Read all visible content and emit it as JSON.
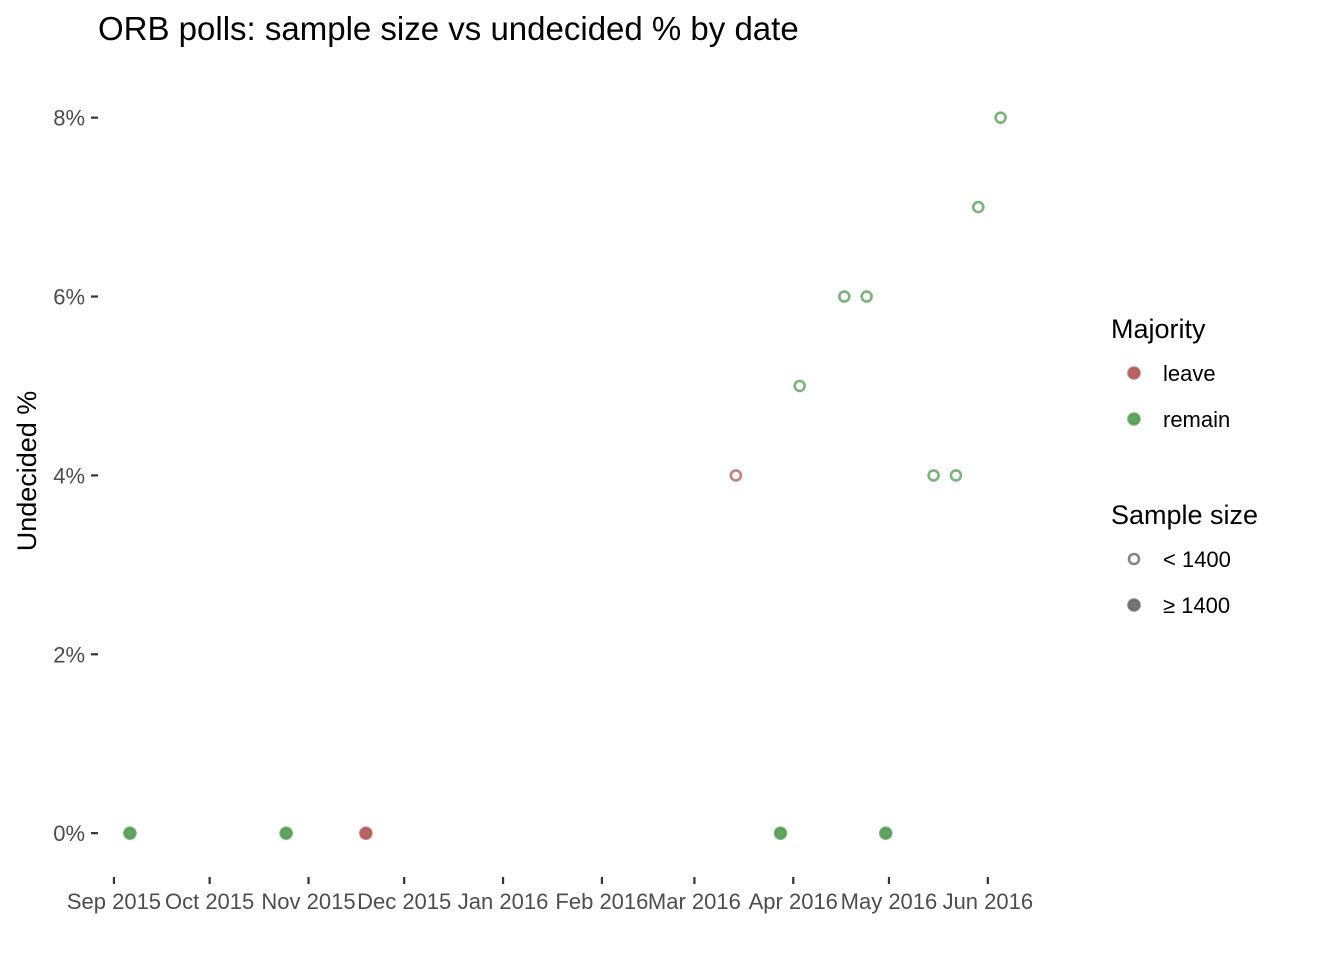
{
  "chart_data": {
    "type": "scatter",
    "title": "ORB polls: sample size vs undecided % by date",
    "xlabel": "",
    "ylabel": "Undecided %",
    "x_type": "date",
    "xlim": [
      "2015-08-27",
      "2016-06-23"
    ],
    "ylim": [
      -0.3,
      8.6
    ],
    "x_ticks": [
      {
        "date": "2015-09-01",
        "label": "Sep 2015"
      },
      {
        "date": "2015-10-01",
        "label": "Oct 2015"
      },
      {
        "date": "2015-11-01",
        "label": "Nov 2015"
      },
      {
        "date": "2015-12-01",
        "label": "Dec 2015"
      },
      {
        "date": "2016-01-01",
        "label": "Jan 2016"
      },
      {
        "date": "2016-02-01",
        "label": "Feb 2016"
      },
      {
        "date": "2016-03-01",
        "label": "Mar 2016"
      },
      {
        "date": "2016-04-01",
        "label": "Apr 2016"
      },
      {
        "date": "2016-05-01",
        "label": "May 2016"
      },
      {
        "date": "2016-06-01",
        "label": "Jun 2016"
      }
    ],
    "y_ticks": [
      {
        "value": 0,
        "label": "0%"
      },
      {
        "value": 2,
        "label": "2%"
      },
      {
        "value": 4,
        "label": "4%"
      },
      {
        "value": 6,
        "label": "6%"
      },
      {
        "value": 8,
        "label": "8%"
      }
    ],
    "grid": false,
    "legend_position": "right",
    "colors": {
      "leave": "#b05454",
      "remain": "#4f9a4f",
      "legend_grey": "#666666",
      "axis_text": "#4d4d4d"
    },
    "points": [
      {
        "date": "2015-09-06",
        "undecided": 0,
        "majority": "remain",
        "sample_size": "≥ 1400"
      },
      {
        "date": "2015-10-25",
        "undecided": 0,
        "majority": "remain",
        "sample_size": "≥ 1400"
      },
      {
        "date": "2015-11-19",
        "undecided": 0,
        "majority": "leave",
        "sample_size": "≥ 1400"
      },
      {
        "date": "2016-03-14",
        "undecided": 4,
        "majority": "leave",
        "sample_size": "< 1400"
      },
      {
        "date": "2016-03-28",
        "undecided": 0,
        "majority": "remain",
        "sample_size": "≥ 1400"
      },
      {
        "date": "2016-04-03",
        "undecided": 5,
        "majority": "remain",
        "sample_size": "< 1400"
      },
      {
        "date": "2016-04-17",
        "undecided": 6,
        "majority": "remain",
        "sample_size": "< 1400"
      },
      {
        "date": "2016-04-24",
        "undecided": 6,
        "majority": "remain",
        "sample_size": "< 1400"
      },
      {
        "date": "2016-04-30",
        "undecided": 0,
        "majority": "remain",
        "sample_size": "≥ 1400"
      },
      {
        "date": "2016-05-15",
        "undecided": 4,
        "majority": "remain",
        "sample_size": "< 1400"
      },
      {
        "date": "2016-05-22",
        "undecided": 4,
        "majority": "remain",
        "sample_size": "< 1400"
      },
      {
        "date": "2016-05-29",
        "undecided": 7,
        "majority": "remain",
        "sample_size": "< 1400"
      },
      {
        "date": "2016-06-05",
        "undecided": 8,
        "majority": "remain",
        "sample_size": "< 1400"
      }
    ],
    "legend": {
      "majority": {
        "title": "Majority",
        "items": [
          {
            "key": "leave",
            "label": "leave"
          },
          {
            "key": "remain",
            "label": "remain"
          }
        ]
      },
      "sample_size": {
        "title": "Sample size",
        "items": [
          {
            "key": "small",
            "label": "< 1400",
            "filled": false
          },
          {
            "key": "large",
            "label": "≥ 1400",
            "filled": true
          }
        ]
      }
    }
  }
}
